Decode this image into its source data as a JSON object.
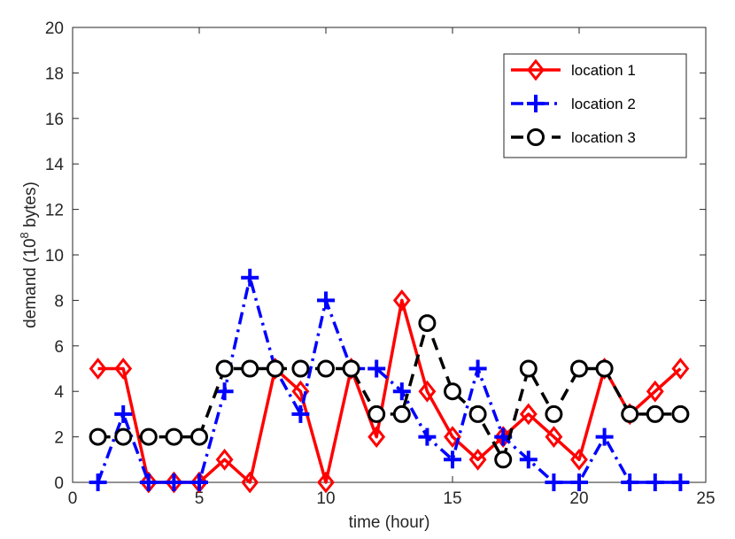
{
  "chart_data": {
    "type": "line",
    "title": "",
    "xlabel": "time (hour)",
    "ylabel_main": "demand (10",
    "ylabel_sup": "8",
    "ylabel_tail": " bytes)",
    "xlim": [
      0,
      25
    ],
    "ylim": [
      0,
      20
    ],
    "xticks": [
      0,
      5,
      10,
      15,
      20,
      25
    ],
    "yticks": [
      0,
      2,
      4,
      6,
      8,
      10,
      12,
      14,
      16,
      18,
      20
    ],
    "grid": false,
    "legend_position": "top-right",
    "x": [
      1,
      2,
      3,
      4,
      5,
      6,
      7,
      8,
      9,
      10,
      11,
      12,
      13,
      14,
      15,
      16,
      17,
      18,
      19,
      20,
      21,
      22,
      23,
      24
    ],
    "series": [
      {
        "name": "location 1",
        "color": "#ff0000",
        "line": "solid",
        "marker": "diamond",
        "values": [
          5,
          5,
          0,
          0,
          0,
          1,
          0,
          5,
          4,
          0,
          5,
          2,
          8,
          4,
          2,
          1,
          2,
          3,
          2,
          1,
          5,
          3,
          4,
          5
        ]
      },
      {
        "name": "location 2",
        "color": "#0000ff",
        "line": "dashdot",
        "marker": "plus",
        "values": [
          0,
          3,
          0,
          0,
          0,
          4,
          9,
          5,
          3,
          8,
          5,
          5,
          4,
          2,
          1,
          5,
          2,
          1,
          0,
          0,
          2,
          0,
          0,
          0
        ]
      },
      {
        "name": "location 3",
        "color": "#000000",
        "line": "dashed",
        "marker": "circle",
        "values": [
          2,
          2,
          2,
          2,
          2,
          5,
          5,
          5,
          5,
          5,
          5,
          3,
          3,
          7,
          4,
          3,
          1,
          5,
          3,
          5,
          5,
          3,
          3,
          3
        ]
      }
    ]
  }
}
